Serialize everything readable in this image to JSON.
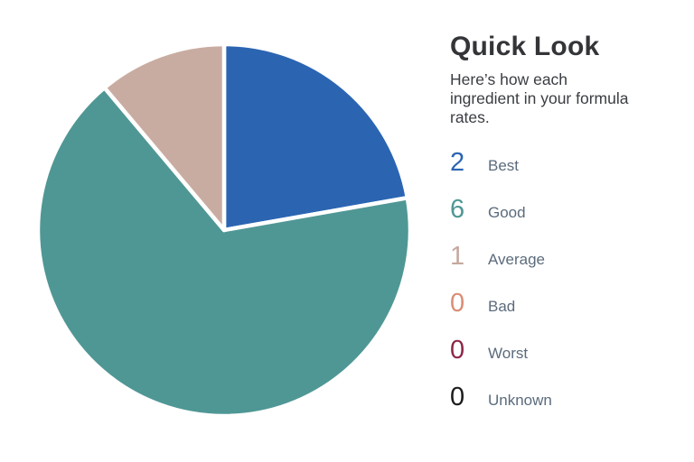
{
  "page": {
    "background": "#ffffff"
  },
  "header": {
    "title": "Quick Look",
    "subtitle_lines": [
      "Here’s how each",
      "ingredient in your formula",
      "rates."
    ]
  },
  "chart_data": {
    "type": "pie",
    "title": "Quick Look",
    "direction": "clockwise",
    "start_angle_deg": 0,
    "legend_position": "right",
    "slice_gap_color": "#ffffff",
    "categories": [
      "Best",
      "Good",
      "Average",
      "Bad",
      "Worst",
      "Unknown"
    ],
    "values": [
      2,
      6,
      1,
      0,
      0,
      0
    ],
    "colors": [
      "#2b65b2",
      "#4f9795",
      "#c9aca1",
      "#d98d74",
      "#8e2646",
      "#1a1b1d"
    ],
    "total": 9
  },
  "legend": {
    "items": [
      {
        "count": "2",
        "label": "Best",
        "color": "#2b65b2"
      },
      {
        "count": "6",
        "label": "Good",
        "color": "#4f9795"
      },
      {
        "count": "1",
        "label": "Average",
        "color": "#c5a89d"
      },
      {
        "count": "0",
        "label": "Bad",
        "color": "#d98d74"
      },
      {
        "count": "0",
        "label": "Worst",
        "color": "#8e2646"
      },
      {
        "count": "0",
        "label": "Unknown",
        "color": "#1a1b1d"
      }
    ],
    "label_color": "#5b6b7c"
  }
}
